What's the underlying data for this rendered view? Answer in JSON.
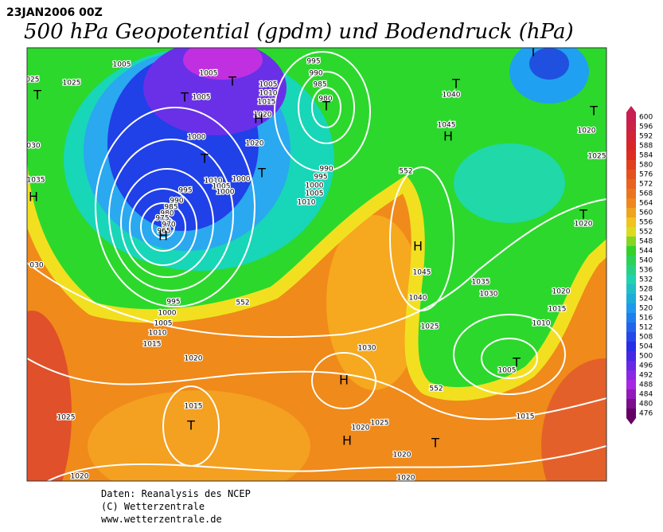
{
  "header": {
    "date": "23JAN2006 00Z",
    "title": "500 hPa Geopotential (gpdm) und Bodendruck (hPa)"
  },
  "colorbar": {
    "ticks": [
      600,
      596,
      592,
      588,
      584,
      580,
      576,
      572,
      568,
      564,
      560,
      556,
      552,
      548,
      544,
      540,
      536,
      532,
      528,
      524,
      520,
      516,
      512,
      508,
      504,
      500,
      496,
      492,
      488,
      484,
      480,
      476
    ]
  },
  "isobar_labels": [
    "1005",
    "1025",
    "1025",
    "1005",
    "1005",
    "995",
    "990",
    "985",
    "980",
    "1005",
    "1010",
    "1015",
    "1020",
    "1040",
    "1045",
    "1020",
    "1000",
    "1020",
    "030",
    "1025",
    "990",
    "995",
    "1000",
    "1005",
    "1010",
    "1035",
    "1010",
    "1005",
    "1000",
    "1000",
    "995",
    "990",
    "985",
    "980",
    "975",
    "970",
    "965",
    "1020",
    "552",
    "030",
    "1045",
    "1035",
    "1030",
    "1040",
    "1020",
    "1015",
    "995",
    "552",
    "1000",
    "1005",
    "1010",
    "1015",
    "1025",
    "1010",
    "1030",
    "1020",
    "1005",
    "552",
    "1015",
    "1025",
    "1015",
    "1025",
    "1020",
    "1020",
    "1020",
    "1020"
  ],
  "pressure_centers": [
    "T",
    "T",
    "T",
    "T",
    "T",
    "T",
    "H",
    "H",
    "T",
    "H",
    "T",
    "T",
    "H",
    "H",
    "T",
    "H",
    "T",
    "H",
    "T",
    "T"
  ],
  "footer": {
    "lines": [
      "Daten: Reanalysis des NCEP",
      "(C) Wetterzentrale",
      "www.wetterzentrale.de"
    ]
  }
}
